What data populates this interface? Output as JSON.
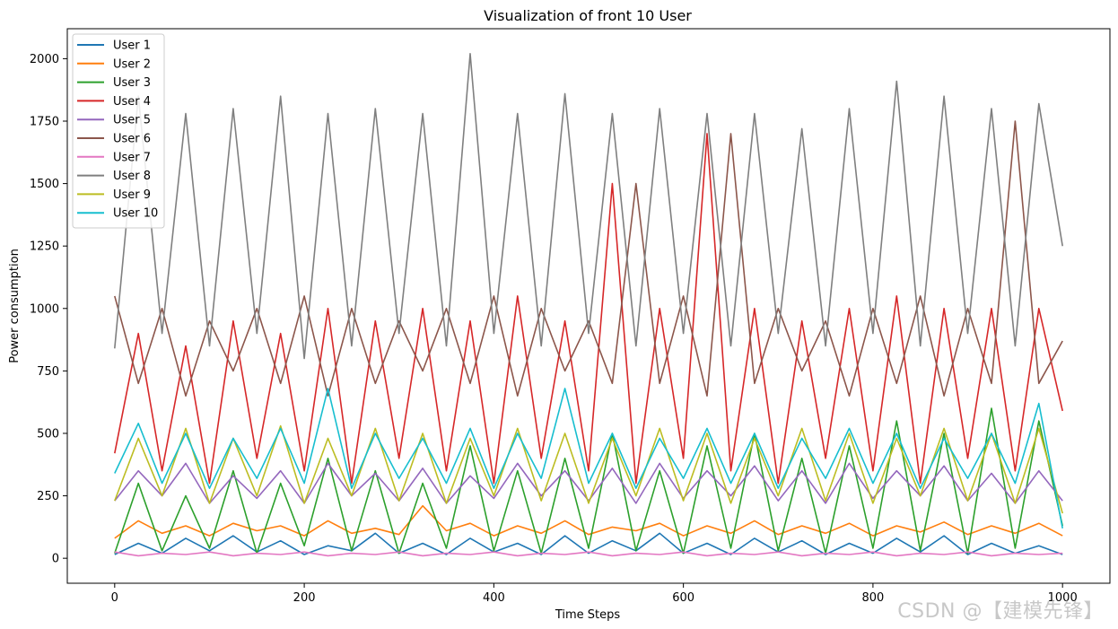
{
  "watermark": "CSDN @【建模先锋】",
  "chart_data": {
    "type": "line",
    "title": "Visualization of front 10 User",
    "xlabel": "Time Steps",
    "ylabel": "Power consumption",
    "xlim": [
      -50,
      1050
    ],
    "ylim": [
      -100,
      2120
    ],
    "xticks": [
      0,
      200,
      400,
      600,
      800,
      1000
    ],
    "yticks": [
      0,
      250,
      500,
      750,
      1000,
      1250,
      1500,
      1750,
      2000
    ],
    "legend_position": "upper-left",
    "grid": false,
    "x_range": [
      0,
      1000
    ],
    "series": [
      {
        "name": "User 1",
        "color": "#1f77b4",
        "values": [
          15,
          60,
          20,
          80,
          30,
          90,
          25,
          70,
          15,
          50,
          30,
          100,
          20,
          60,
          15,
          80,
          25,
          60,
          15,
          90,
          20,
          70,
          30,
          100,
          20,
          60,
          15,
          80,
          25,
          70,
          15,
          60,
          20,
          80,
          25,
          90,
          15,
          60,
          20,
          50,
          15
        ]
      },
      {
        "name": "User 2",
        "color": "#ff7f0e",
        "values": [
          80,
          150,
          100,
          130,
          90,
          140,
          110,
          130,
          90,
          150,
          100,
          120,
          95,
          210,
          110,
          140,
          90,
          130,
          100,
          150,
          95,
          125,
          110,
          140,
          90,
          130,
          100,
          150,
          95,
          130,
          100,
          140,
          90,
          130,
          105,
          145,
          95,
          130,
          100,
          140,
          90
        ]
      },
      {
        "name": "User 3",
        "color": "#2ca02c",
        "values": [
          20,
          300,
          30,
          250,
          40,
          350,
          20,
          300,
          50,
          400,
          30,
          350,
          20,
          300,
          40,
          450,
          30,
          350,
          20,
          400,
          40,
          500,
          30,
          350,
          20,
          450,
          40,
          500,
          30,
          400,
          20,
          450,
          40,
          550,
          30,
          500,
          20,
          600,
          40,
          550,
          130
        ]
      },
      {
        "name": "User 4",
        "color": "#d62728",
        "values": [
          420,
          900,
          350,
          850,
          300,
          950,
          400,
          900,
          350,
          1000,
          300,
          950,
          400,
          1000,
          350,
          950,
          300,
          1050,
          400,
          950,
          350,
          1500,
          300,
          1000,
          400,
          1700,
          350,
          1000,
          300,
          950,
          400,
          1000,
          350,
          1050,
          300,
          1000,
          400,
          1000,
          350,
          1000,
          590
        ]
      },
      {
        "name": "User 5",
        "color": "#9467bd",
        "values": [
          230,
          350,
          250,
          380,
          220,
          330,
          240,
          350,
          220,
          380,
          250,
          340,
          230,
          360,
          220,
          330,
          240,
          380,
          250,
          350,
          230,
          360,
          220,
          380,
          240,
          350,
          250,
          370,
          230,
          350,
          220,
          380,
          240,
          350,
          250,
          370,
          230,
          340,
          220,
          350,
          230
        ]
      },
      {
        "name": "User 6",
        "color": "#8c564b",
        "values": [
          1050,
          700,
          1000,
          650,
          950,
          750,
          1000,
          700,
          1050,
          650,
          1000,
          700,
          950,
          750,
          1000,
          700,
          1050,
          650,
          1000,
          750,
          950,
          700,
          1500,
          700,
          1050,
          650,
          1700,
          700,
          1000,
          750,
          950,
          650,
          1000,
          700,
          1050,
          650,
          1000,
          700,
          1750,
          700,
          870
        ]
      },
      {
        "name": "User 7",
        "color": "#e377c2",
        "values": [
          25,
          10,
          20,
          15,
          25,
          10,
          20,
          15,
          25,
          10,
          20,
          15,
          25,
          10,
          20,
          15,
          25,
          10,
          20,
          15,
          25,
          10,
          20,
          15,
          25,
          10,
          20,
          15,
          25,
          10,
          20,
          15,
          25,
          10,
          20,
          15,
          25,
          10,
          20,
          15,
          20
        ]
      },
      {
        "name": "User 8",
        "color": "#7f7f7f",
        "values": [
          840,
          1850,
          900,
          1780,
          850,
          1800,
          900,
          1850,
          800,
          1780,
          850,
          1800,
          900,
          1780,
          850,
          2020,
          900,
          1780,
          850,
          1860,
          900,
          1780,
          850,
          1800,
          900,
          1780,
          850,
          1780,
          900,
          1720,
          850,
          1800,
          900,
          1910,
          850,
          1850,
          900,
          1800,
          850,
          1820,
          1250
        ]
      },
      {
        "name": "User 9",
        "color": "#bcbd22",
        "values": [
          230,
          480,
          250,
          520,
          220,
          480,
          250,
          530,
          220,
          480,
          250,
          520,
          230,
          500,
          220,
          480,
          250,
          520,
          230,
          500,
          220,
          480,
          250,
          520,
          230,
          500,
          220,
          480,
          250,
          520,
          230,
          500,
          220,
          480,
          250,
          520,
          230,
          500,
          220,
          520,
          180
        ]
      },
      {
        "name": "User 10",
        "color": "#17becf",
        "values": [
          340,
          540,
          300,
          500,
          280,
          480,
          320,
          520,
          300,
          680,
          280,
          500,
          320,
          480,
          300,
          520,
          280,
          500,
          320,
          680,
          300,
          500,
          280,
          480,
          320,
          520,
          300,
          500,
          280,
          480,
          320,
          520,
          300,
          500,
          280,
          480,
          320,
          500,
          300,
          620,
          120
        ]
      }
    ]
  }
}
